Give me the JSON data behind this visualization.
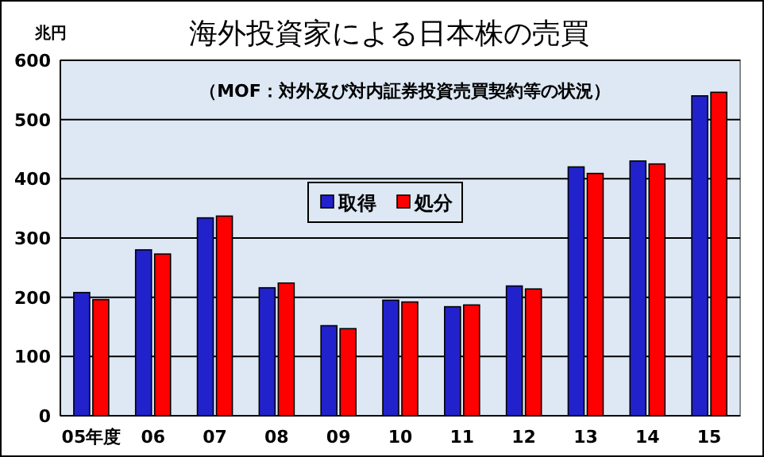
{
  "chart_data": {
    "type": "bar",
    "title": "海外投資家による日本株の売買",
    "subtitle": "（MOF：対外及び対内証券投資売買契約等の状況）",
    "ylabel": "兆円",
    "categories": [
      "05年度",
      "06",
      "07",
      "08",
      "09",
      "10",
      "11",
      "12",
      "13",
      "14",
      "15"
    ],
    "series": [
      {
        "name": "取得",
        "color": "#2222cc",
        "values": [
          208,
          280,
          334,
          216,
          152,
          195,
          184,
          219,
          420,
          430,
          540
        ]
      },
      {
        "name": "処分",
        "color": "#ff0000",
        "values": [
          196,
          273,
          337,
          224,
          147,
          192,
          187,
          214,
          409,
          425,
          546
        ]
      }
    ],
    "ylim": [
      0,
      600
    ],
    "yticks": [
      0,
      100,
      200,
      300,
      400,
      500,
      600
    ],
    "grid": "y",
    "legend": "center"
  }
}
